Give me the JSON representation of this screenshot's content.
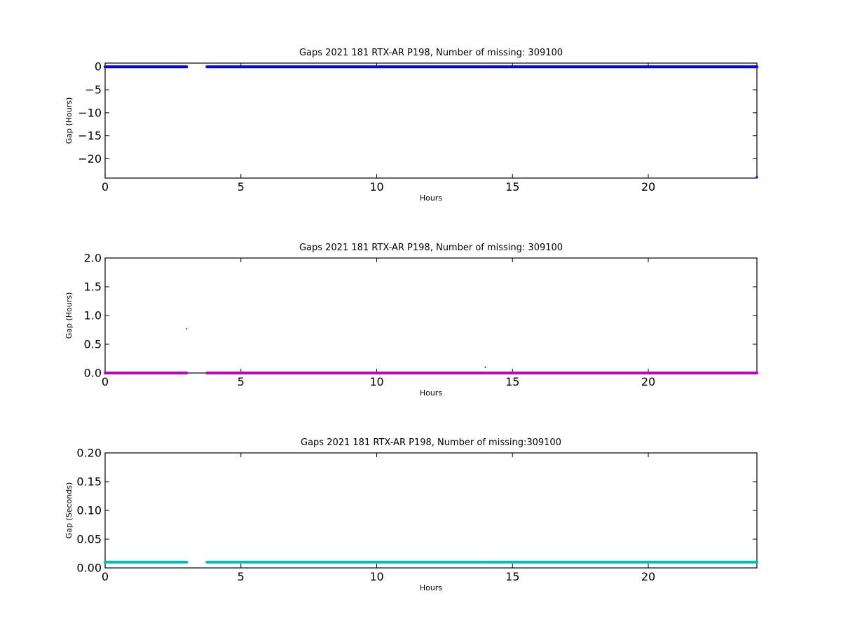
{
  "chart_data": [
    {
      "type": "scatter",
      "title": "Gaps 2021 181 RTX-AR  P198, Number of missing: 309100",
      "xlabel": "Hours",
      "ylabel": "Gap (Hours)",
      "xlim": [
        0,
        24
      ],
      "ylim": [
        -24.2,
        0.8
      ],
      "xticks": [
        0,
        5,
        10,
        15,
        20
      ],
      "yticks": [
        0,
        -5,
        -10,
        -15,
        -20
      ],
      "ytick_labels": [
        "0",
        "−5",
        "−10",
        "−15",
        "−20"
      ],
      "grid": false,
      "series": [
        {
          "color": "#0000ff",
          "style": "dense-dots",
          "segments": [
            {
              "x": [
                0,
                3.0
              ],
              "y": 0.0
            },
            {
              "x": [
                3.75,
                14.0
              ],
              "y": 0.0
            },
            {
              "x": [
                14.05,
                24.0
              ],
              "y": 0.0
            }
          ],
          "points": [
            {
              "x": 24.0,
              "y": -24.0
            }
          ]
        }
      ]
    },
    {
      "type": "scatter",
      "title": "Gaps 2021 181 RTX-AR  P198, Number of missing: 309100",
      "xlabel": "Hours",
      "ylabel": "Gap (Hours)",
      "xlim": [
        0,
        24
      ],
      "ylim": [
        0,
        2.0
      ],
      "xticks": [
        0,
        5,
        10,
        15,
        20
      ],
      "yticks": [
        0.0,
        0.5,
        1.0,
        1.5,
        2.0
      ],
      "ytick_labels": [
        "0.0",
        "0.5",
        "1.0",
        "1.5",
        "2.0"
      ],
      "grid": false,
      "series": [
        {
          "color": "#bf00bf",
          "style": "dense-dots",
          "segments": [
            {
              "x": [
                0,
                3.0
              ],
              "y": 0.0
            },
            {
              "x": [
                3.75,
                14.0
              ],
              "y": 0.0
            },
            {
              "x": [
                14.05,
                24.0
              ],
              "y": 0.0
            }
          ],
          "points": []
        },
        {
          "color": "#ff0000",
          "style": "dots",
          "segments": [],
          "points": [
            {
              "x": 3.0,
              "y": 0.77
            }
          ]
        },
        {
          "color": "#000080",
          "style": "dots",
          "segments": [],
          "points": [
            {
              "x": 14.0,
              "y": 0.1
            }
          ]
        }
      ]
    },
    {
      "type": "scatter",
      "title": "Gaps 2021 181 RTX-AR  P198, Number of missing:309100",
      "xlabel": "Hours",
      "ylabel": "Gap (Seconds)",
      "xlim": [
        0,
        24
      ],
      "ylim": [
        0,
        0.2
      ],
      "xticks": [
        0,
        5,
        10,
        15,
        20
      ],
      "yticks": [
        0.0,
        0.05,
        0.1,
        0.15,
        0.2
      ],
      "ytick_labels": [
        "0.00",
        "0.05",
        "0.10",
        "0.15",
        "0.20"
      ],
      "grid": false,
      "series": [
        {
          "color": "#00bfbf",
          "style": "dense-dots",
          "segments": [
            {
              "x": [
                0,
                3.0
              ],
              "y": 0.01
            },
            {
              "x": [
                3.75,
                14.0
              ],
              "y": 0.01
            },
            {
              "x": [
                14.05,
                24.0
              ],
              "y": 0.01
            }
          ],
          "points": []
        }
      ]
    }
  ]
}
